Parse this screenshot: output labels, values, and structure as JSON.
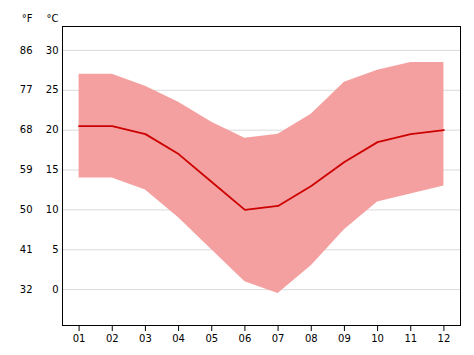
{
  "chart_data": {
    "type": "line",
    "x": [
      1,
      2,
      3,
      4,
      5,
      6,
      7,
      8,
      9,
      10,
      11,
      12
    ],
    "xlim": [
      0.5,
      12.5
    ],
    "xticks": [
      {
        "value": 1,
        "label": "01"
      },
      {
        "value": 2,
        "label": "02"
      },
      {
        "value": 3,
        "label": "03"
      },
      {
        "value": 4,
        "label": "04"
      },
      {
        "value": 5,
        "label": "05"
      },
      {
        "value": 6,
        "label": "06"
      },
      {
        "value": 7,
        "label": "07"
      },
      {
        "value": 8,
        "label": "08"
      },
      {
        "value": 9,
        "label": "09"
      },
      {
        "value": 10,
        "label": "10"
      },
      {
        "value": 11,
        "label": "11"
      },
      {
        "value": 12,
        "label": "12"
      }
    ],
    "ylabel": "°C",
    "ylim": [
      -4.5,
      33
    ],
    "yticks": [
      0,
      5,
      10,
      15,
      20,
      25,
      30
    ],
    "y2label": "°F",
    "y2lim": [
      23.9,
      91.4
    ],
    "y2ticks": [
      32,
      41,
      50,
      59,
      68,
      77,
      86
    ],
    "grid": true,
    "series": [
      {
        "type": "area",
        "color": "#f5a0a0",
        "lower": [
          14.0,
          14.0,
          12.5,
          9.0,
          5.0,
          1.0,
          -0.5,
          3.0,
          7.5,
          11.0,
          12.0,
          13.0
        ],
        "upper": [
          27.0,
          27.0,
          25.5,
          23.5,
          21.0,
          19.0,
          19.5,
          22.0,
          26.0,
          27.5,
          28.5,
          28.5
        ]
      },
      {
        "type": "line",
        "color": "#cc0000",
        "values": [
          20.5,
          20.5,
          19.5,
          17.0,
          13.5,
          10.0,
          10.5,
          13.0,
          16.0,
          18.5,
          19.5,
          20.0
        ]
      }
    ]
  }
}
